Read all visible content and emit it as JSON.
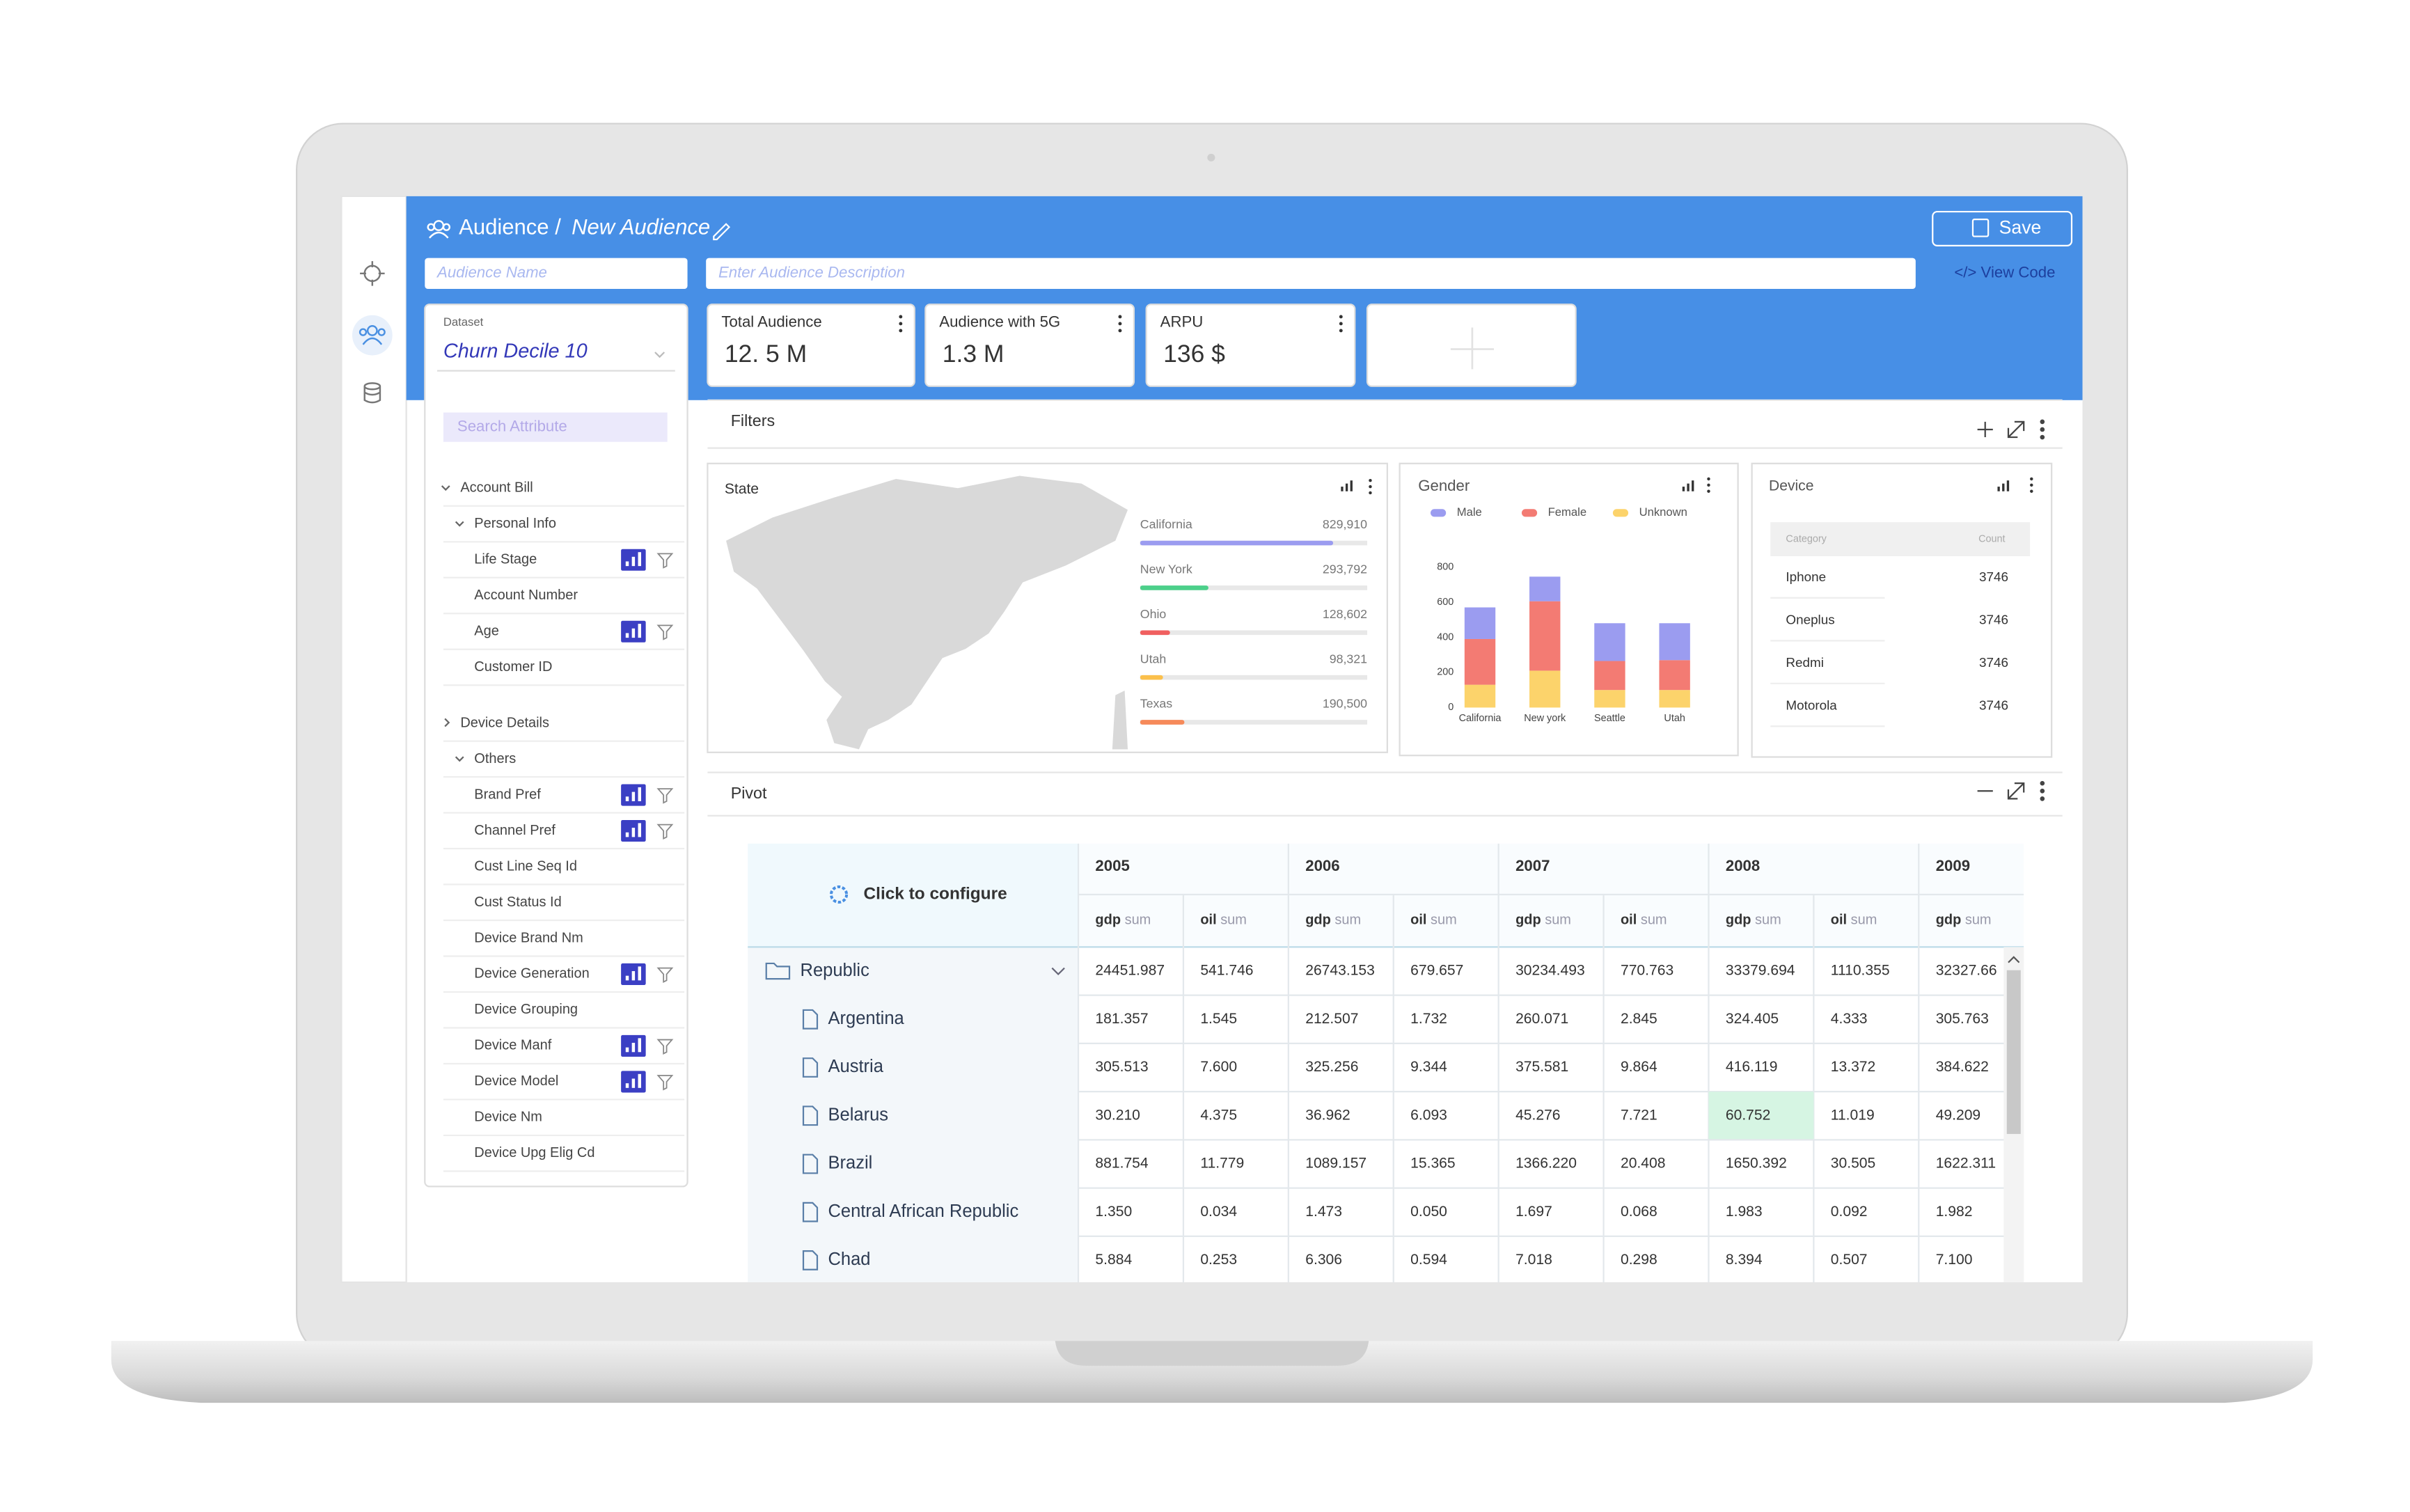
{
  "header": {
    "breadcrumb": "Audience /",
    "title": "New Audience",
    "save": "Save",
    "name_placeholder": "Audience Name",
    "description_placeholder": "Enter Audience Description",
    "view_code": "</> View Code"
  },
  "dataset": {
    "label": "Dataset",
    "value": "Churn Decile 10",
    "search_placeholder": "Search Attribute"
  },
  "attributes": [
    {
      "label": "Account Bill",
      "level": 0,
      "expanded": true
    },
    {
      "label": "Personal Info",
      "level": 1,
      "expanded": true
    },
    {
      "label": "Life Stage",
      "level": 2,
      "icons": true
    },
    {
      "label": "Account Number",
      "level": 2
    },
    {
      "label": "Age",
      "level": 2,
      "icons": true
    },
    {
      "label": "Customer ID",
      "level": 2
    },
    {
      "label": "Device Details",
      "level": 0,
      "expanded": false
    },
    {
      "label": "Others",
      "level": 1,
      "expanded": true
    },
    {
      "label": "Brand Pref",
      "level": 2,
      "icons": true
    },
    {
      "label": "Channel Pref",
      "level": 2,
      "icons": true
    },
    {
      "label": "Cust Line Seq Id",
      "level": 2
    },
    {
      "label": "Cust Status Id",
      "level": 2
    },
    {
      "label": "Device Brand Nm",
      "level": 2
    },
    {
      "label": "Device Generation",
      "level": 2,
      "icons": true
    },
    {
      "label": "Device Grouping",
      "level": 2
    },
    {
      "label": "Device Manf",
      "level": 2,
      "icons": true
    },
    {
      "label": "Device Model",
      "level": 2,
      "icons": true
    },
    {
      "label": "Device Nm",
      "level": 2
    },
    {
      "label": "Device Upg Elig Cd",
      "level": 2
    }
  ],
  "kpis": [
    {
      "label": "Total Audience",
      "value": "12. 5 M"
    },
    {
      "label": "Audience with 5G",
      "value": "1.3 M"
    },
    {
      "label": "ARPU",
      "value": "136 $"
    }
  ],
  "filters": {
    "title": "Filters"
  },
  "state": {
    "title": "State",
    "categories": [
      "California",
      "New York",
      "Ohio",
      "Utah",
      "Texas"
    ],
    "values": [
      829910,
      293792,
      128602,
      98321,
      190500
    ],
    "value_labels": [
      "829,910",
      "293,792",
      "128,602",
      "98,321",
      "190,500"
    ],
    "colors": [
      "#9b9cf0",
      "#4cd08a",
      "#f06060",
      "#fbc04c",
      "#f68a5a"
    ]
  },
  "gender_chart": {
    "type": "bar",
    "stacked": true,
    "title": "Gender",
    "categories": [
      "California",
      "New york",
      "Seattle",
      "Utah"
    ],
    "series": [
      {
        "name": "Unknown",
        "color": "#fcd36b",
        "values": [
          130,
          210,
          100,
          100
        ]
      },
      {
        "name": "Female",
        "color": "#f37b73",
        "values": [
          260,
          395,
          165,
          170
        ]
      },
      {
        "name": "Male",
        "color": "#9b9cf0",
        "values": [
          180,
          140,
          215,
          210
        ]
      }
    ],
    "ylim": [
      0,
      800
    ],
    "yticks": [
      0,
      200,
      400,
      600,
      800
    ]
  },
  "device": {
    "title": "Device",
    "columns": [
      "Category",
      "Count"
    ],
    "rows": [
      [
        "Iphone",
        3746
      ],
      [
        "Oneplus",
        3746
      ],
      [
        "Redmi",
        3746
      ],
      [
        "Motorola",
        3746
      ]
    ]
  },
  "pivot": {
    "title": "Pivot",
    "configure": "Click to configure",
    "years": [
      "2005",
      "2006",
      "2007",
      "2008",
      "2009"
    ],
    "columns": [
      {
        "field": "gdp",
        "agg": "sum"
      },
      {
        "field": "oil",
        "agg": "sum"
      },
      {
        "field": "gdp",
        "agg": "sum"
      },
      {
        "field": "oil",
        "agg": "sum"
      },
      {
        "field": "gdp",
        "agg": "sum"
      },
      {
        "field": "oil",
        "agg": "sum"
      },
      {
        "field": "gdp",
        "agg": "sum"
      },
      {
        "field": "oil",
        "agg": "sum"
      },
      {
        "field": "gdp",
        "agg": "sum"
      }
    ],
    "rows": [
      {
        "label": "Republic",
        "group": true,
        "cells": [
          "24451.987",
          "541.746",
          "26743.153",
          "679.657",
          "30234.493",
          "770.763",
          "33379.694",
          "1110.355",
          "32327.66"
        ]
      },
      {
        "label": "Argentina",
        "cells": [
          "181.357",
          "1.545",
          "212.507",
          "1.732",
          "260.071",
          "2.845",
          "324.405",
          "4.333",
          "305.763"
        ]
      },
      {
        "label": "Austria",
        "cells": [
          "305.513",
          "7.600",
          "325.256",
          "9.344",
          "375.581",
          "9.864",
          "416.119",
          "13.372",
          "384.622"
        ]
      },
      {
        "label": "Belarus",
        "cells": [
          "30.210",
          "4.375",
          "36.962",
          "6.093",
          "45.276",
          "7.721",
          "60.752",
          "11.019",
          "49.209"
        ]
      },
      {
        "label": "Brazil",
        "cells": [
          "881.754",
          "11.779",
          "1089.157",
          "15.365",
          "1366.220",
          "20.408",
          "1650.392",
          "30.505",
          "1622.311"
        ]
      },
      {
        "label": "Central African Republic",
        "cells": [
          "1.350",
          "0.034",
          "1.473",
          "0.050",
          "1.697",
          "0.068",
          "1.983",
          "0.092",
          "1.982"
        ]
      },
      {
        "label": "Chad",
        "cells": [
          "5.884",
          "0.253",
          "6.306",
          "0.594",
          "7.018",
          "0.298",
          "8.394",
          "0.507",
          "7.100"
        ]
      }
    ]
  }
}
